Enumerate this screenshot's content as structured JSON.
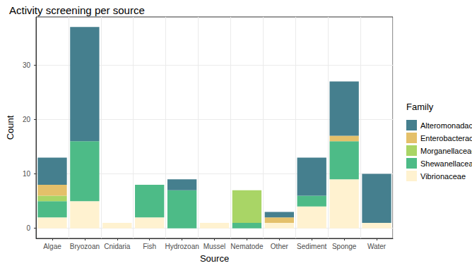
{
  "chart_data": {
    "type": "bar",
    "title": "Activity screening per source",
    "x_label": "Source",
    "y_label": "Count",
    "legend_title": "Family",
    "categories": [
      "Algae",
      "Bryozoan",
      "Cnidaria",
      "Fish",
      "Hydrozoan",
      "Mussel",
      "Nematode",
      "Other",
      "Sediment",
      "Sponge",
      "Water"
    ],
    "series": [
      {
        "name": "Alteromonadaceae",
        "color": "#457f8e",
        "values": [
          5,
          21,
          0,
          0,
          2,
          0,
          0,
          1,
          7,
          10,
          9
        ]
      },
      {
        "name": "Enterobacteraceae",
        "color": "#e4c06a",
        "values": [
          2,
          0,
          0,
          0,
          0,
          0,
          0,
          1,
          0,
          1,
          0
        ]
      },
      {
        "name": "Morganellaceae",
        "color": "#a9d566",
        "values": [
          1,
          0,
          0,
          0,
          0,
          0,
          6,
          0,
          0,
          0,
          0
        ]
      },
      {
        "name": "Shewanellaceae",
        "color": "#4dbb87",
        "values": [
          3,
          11,
          0,
          6,
          7,
          0,
          1,
          0,
          2,
          7,
          0
        ]
      },
      {
        "name": "Vibrionaceae",
        "color": "#fff2d0",
        "values": [
          2,
          5,
          1,
          2,
          0,
          1,
          0,
          1,
          4,
          9,
          1
        ]
      }
    ],
    "stacked": true,
    "grid": true,
    "legend": "right",
    "ylim": [
      -1.85,
      38.85
    ],
    "yticks": [
      0,
      10,
      20,
      30
    ]
  }
}
